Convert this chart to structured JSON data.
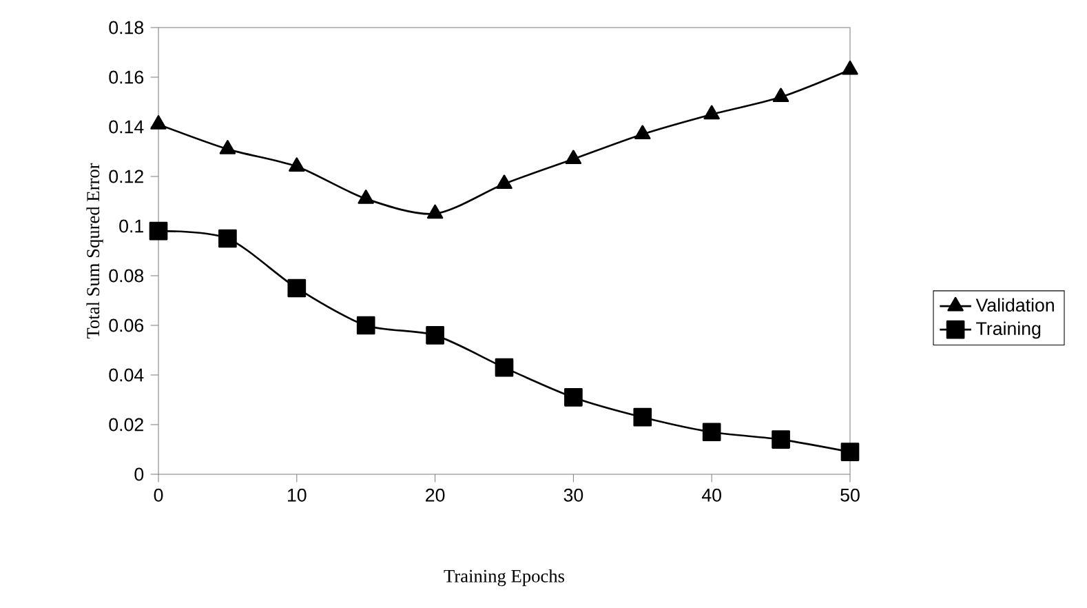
{
  "chart_data": {
    "type": "line",
    "xlabel": "Training Epochs",
    "ylabel": "Total Sum Squred Error",
    "x": [
      0,
      5,
      10,
      15,
      20,
      25,
      30,
      35,
      40,
      45,
      50
    ],
    "series": [
      {
        "name": "Validation",
        "color": "#000000",
        "marker": "triangle",
        "values": [
          0.141,
          0.131,
          0.124,
          0.111,
          0.105,
          0.117,
          0.127,
          0.137,
          0.145,
          0.152,
          0.163
        ]
      },
      {
        "name": "Training",
        "color": "#000000",
        "marker": "square",
        "values": [
          0.098,
          0.095,
          0.075,
          0.06,
          0.056,
          0.043,
          0.031,
          0.023,
          0.017,
          0.014,
          0.009
        ]
      }
    ],
    "xlim": [
      0,
      50
    ],
    "xticks": [
      0,
      10,
      20,
      30,
      40,
      50
    ],
    "ylim": [
      0,
      0.18
    ],
    "yticks": [
      0,
      {
        "value": 0.02,
        "label": "0.02"
      },
      {
        "value": 0.04,
        "label": "0.04"
      },
      {
        "value": 0.06,
        "label": "0.06"
      },
      {
        "value": 0.08,
        "label": "0.08"
      },
      {
        "value": 0.1,
        "label": "0.1"
      },
      {
        "value": 0.12,
        "label": "0.12"
      },
      {
        "value": 0.14,
        "label": "0.14"
      },
      {
        "value": 0.16,
        "label": "0.16"
      },
      {
        "value": 0.18,
        "label": "0.18"
      }
    ],
    "grid": false,
    "legend": "right",
    "line_style": "solid"
  }
}
